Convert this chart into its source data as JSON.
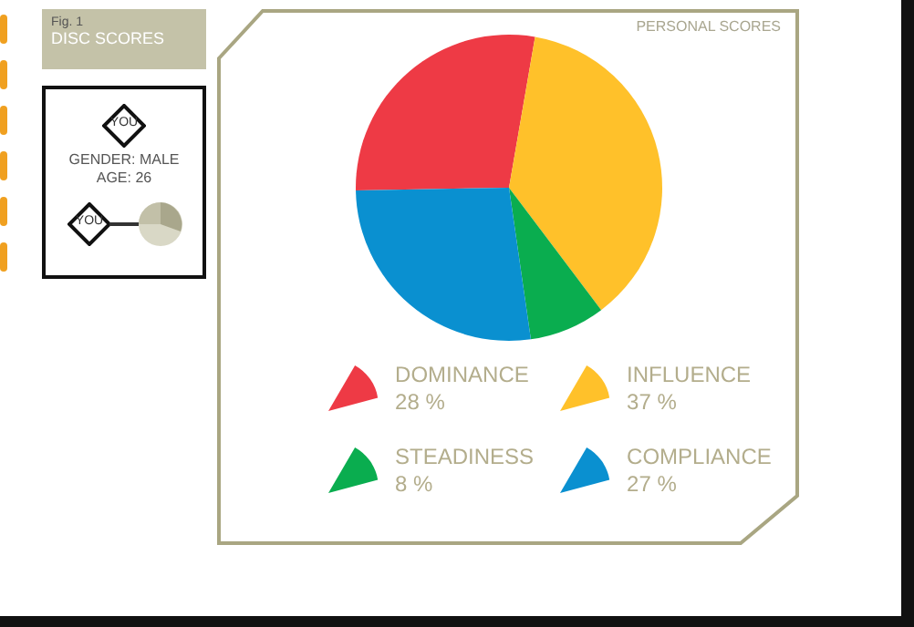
{
  "chart_data": {
    "type": "pie",
    "title": "DISC SCORES",
    "subtitle": "Fig. 1",
    "categories": [
      "DOMINANCE",
      "INFLUENCE",
      "STEADINESS",
      "COMPLIANCE"
    ],
    "values": [
      28,
      37,
      8,
      27
    ],
    "value_labels": [
      "28 %",
      "37 %",
      "8 %",
      "27 %"
    ],
    "colors": [
      "#ee3a45",
      "#ffc12a",
      "#0aad4f",
      "#0a90d0"
    ],
    "legend": "bottom",
    "annotations": [
      "PERSONAL SCORES",
      "YOU",
      "GENDER: MALE",
      "AGE: 26",
      "YOU"
    ]
  }
}
